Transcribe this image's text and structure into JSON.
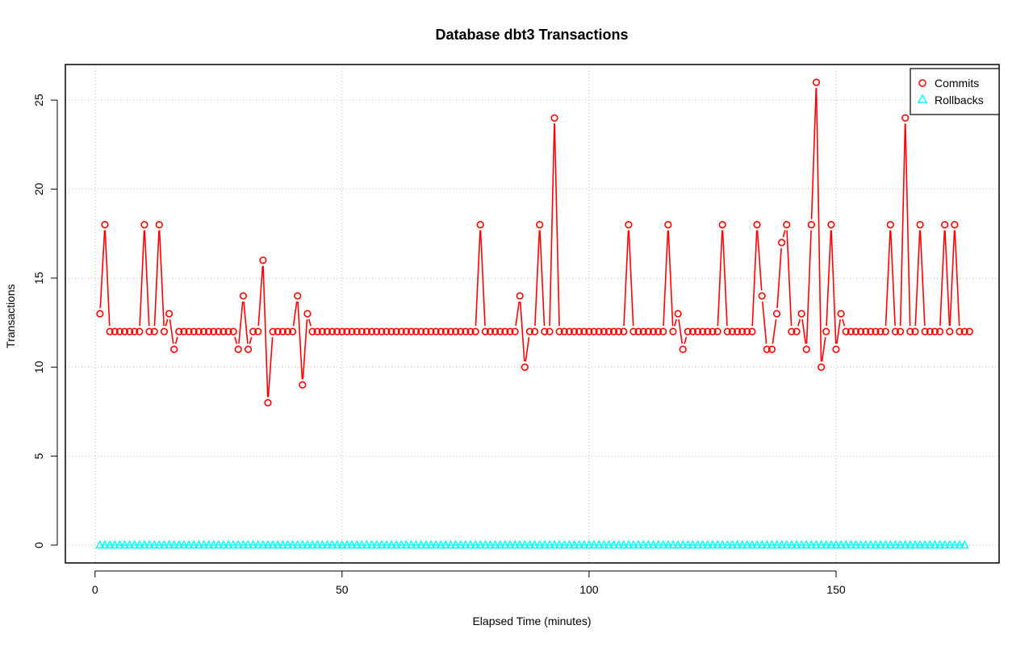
{
  "chart_data": {
    "type": "line",
    "title": "Database dbt3 Transactions",
    "xlabel": "Elapsed Time (minutes)",
    "ylabel": "Transactions",
    "xlim": [
      -6,
      183
    ],
    "ylim": [
      -1,
      27
    ],
    "xticks": [
      0,
      50,
      100,
      150
    ],
    "yticks": [
      0,
      5,
      10,
      15,
      20,
      25
    ],
    "grid": true,
    "legend_position": "top-right",
    "series": [
      {
        "name": "Commits",
        "color": "#ff0000",
        "marker": "circle",
        "x_start": 1,
        "values": [
          13,
          18,
          12,
          12,
          12,
          12,
          12,
          12,
          12,
          18,
          12,
          12,
          18,
          12,
          13,
          11,
          12,
          12,
          12,
          12,
          12,
          12,
          12,
          12,
          12,
          12,
          12,
          12,
          11,
          14,
          11,
          12,
          12,
          16,
          8,
          12,
          12,
          12,
          12,
          12,
          14,
          9,
          13,
          12,
          12,
          12,
          12,
          12,
          12,
          12,
          12,
          12,
          12,
          12,
          12,
          12,
          12,
          12,
          12,
          12,
          12,
          12,
          12,
          12,
          12,
          12,
          12,
          12,
          12,
          12,
          12,
          12,
          12,
          12,
          12,
          12,
          12,
          18,
          12,
          12,
          12,
          12,
          12,
          12,
          12,
          14,
          10,
          12,
          12,
          18,
          12,
          12,
          24,
          12,
          12,
          12,
          12,
          12,
          12,
          12,
          12,
          12,
          12,
          12,
          12,
          12,
          12,
          18,
          12,
          12,
          12,
          12,
          12,
          12,
          12,
          18,
          12,
          13,
          11,
          12,
          12,
          12,
          12,
          12,
          12,
          12,
          18,
          12,
          12,
          12,
          12,
          12,
          12,
          18,
          14,
          11,
          11,
          13,
          17,
          18,
          12,
          12,
          13,
          11,
          18,
          26,
          10,
          12,
          18,
          11,
          13,
          12,
          12,
          12,
          12,
          12,
          12,
          12,
          12,
          12,
          18,
          12,
          12,
          24,
          12,
          12,
          18,
          12,
          12,
          12,
          12,
          18,
          12,
          18,
          12,
          12,
          12
        ]
      },
      {
        "name": "Rollbacks",
        "color": "#00ffff",
        "marker": "triangle",
        "x_start": 1,
        "constant": 0,
        "count": 176
      }
    ]
  }
}
